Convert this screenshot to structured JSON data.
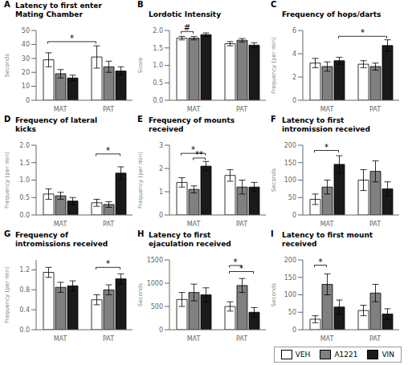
{
  "chart_data": [
    {
      "type": "bar",
      "label": "A",
      "title": "Latency to first enter\nMating Chamber",
      "ylabel": "Seconds",
      "categories": [
        "MAT",
        "PAT"
      ],
      "series": [
        {
          "name": "VEH",
          "color": "#ffffff",
          "values": [
            29,
            31
          ],
          "errors": [
            5,
            8
          ]
        },
        {
          "name": "A1221",
          "color": "#808080",
          "values": [
            19,
            24
          ],
          "errors": [
            3,
            4
          ]
        },
        {
          "name": "VIN",
          "color": "#1a1a1a",
          "values": [
            16,
            21
          ],
          "errors": [
            2,
            3
          ]
        }
      ],
      "ylim": [
        0,
        50
      ],
      "yticks": [
        0,
        10,
        20,
        30,
        40,
        50
      ],
      "annotations": [
        {
          "text": "*",
          "from": {
            "category": "MAT",
            "series": "VEH"
          },
          "to": {
            "category": "PAT",
            "series": "VEH"
          },
          "y": 42
        }
      ]
    },
    {
      "type": "bar",
      "label": "B",
      "title": "Lordotic Intensity",
      "ylabel": "Score",
      "categories": [
        "MAT",
        "PAT"
      ],
      "series": [
        {
          "name": "VEH",
          "color": "#ffffff",
          "values": [
            1.78,
            1.62
          ],
          "errors": [
            0.05,
            0.06
          ]
        },
        {
          "name": "A1221",
          "color": "#808080",
          "values": [
            1.78,
            1.72
          ],
          "errors": [
            0.05,
            0.05
          ]
        },
        {
          "name": "VIN",
          "color": "#1a1a1a",
          "values": [
            1.88,
            1.58
          ],
          "errors": [
            0.05,
            0.07
          ]
        }
      ],
      "ylim": [
        0.0,
        2.0
      ],
      "yticks": [
        {
          "value": 0,
          "label": "0.0"
        },
        0.5,
        {
          "value": 1,
          "label": "1.0"
        },
        1.5,
        {
          "value": 2,
          "label": "2.0"
        }
      ],
      "annotations": [
        {
          "text": "#",
          "from": {
            "category": "MAT",
            "series": "VEH"
          },
          "to": {
            "category": "MAT",
            "series": "A1221"
          },
          "y": 1.97
        }
      ]
    },
    {
      "type": "bar",
      "label": "C",
      "title": "Frequency of hops/darts",
      "ylabel": "Frequency (per min)",
      "categories": [
        "MAT",
        "PAT"
      ],
      "series": [
        {
          "name": "VEH",
          "color": "#ffffff",
          "values": [
            3.2,
            3.1
          ],
          "errors": [
            0.4,
            0.3
          ]
        },
        {
          "name": "A1221",
          "color": "#808080",
          "values": [
            2.9,
            2.9
          ],
          "errors": [
            0.4,
            0.3
          ]
        },
        {
          "name": "VIN",
          "color": "#1a1a1a",
          "values": [
            3.4,
            4.7
          ],
          "errors": [
            0.3,
            0.5
          ]
        }
      ],
      "ylim": [
        0,
        6
      ],
      "yticks": [
        0,
        2,
        4,
        6
      ],
      "annotations": [
        {
          "text": "*",
          "from": {
            "category": "MAT",
            "series": "VIN"
          },
          "to": {
            "category": "PAT",
            "series": "VIN"
          },
          "y": 5.5
        }
      ]
    },
    {
      "type": "bar",
      "label": "D",
      "title": "Frequency of lateral\nkicks",
      "ylabel": "Frequency (per min)",
      "categories": [
        "MAT",
        "PAT"
      ],
      "series": [
        {
          "name": "VEH",
          "color": "#ffffff",
          "values": [
            0.6,
            0.35
          ],
          "errors": [
            0.15,
            0.1
          ]
        },
        {
          "name": "A1221",
          "color": "#808080",
          "values": [
            0.55,
            0.3
          ],
          "errors": [
            0.1,
            0.08
          ]
        },
        {
          "name": "VIN",
          "color": "#1a1a1a",
          "values": [
            0.4,
            1.2
          ],
          "errors": [
            0.1,
            0.18
          ]
        }
      ],
      "ylim": [
        0,
        2
      ],
      "yticks": [
        {
          "value": 0,
          "label": "0.0"
        },
        0.5,
        {
          "value": 1,
          "label": "1.0"
        },
        1.5,
        {
          "value": 2,
          "label": "2.0"
        }
      ],
      "annotations": [
        {
          "text": "*",
          "from": {
            "category": "PAT",
            "series": "VEH"
          },
          "to": {
            "category": "PAT",
            "series": "VIN"
          },
          "y": 1.75
        }
      ]
    },
    {
      "type": "bar",
      "label": "E",
      "title": "Frequency of mounts\nreceived",
      "ylabel": "Frequency (per min)",
      "categories": [
        "MAT",
        "PAT"
      ],
      "series": [
        {
          "name": "VEH",
          "color": "#ffffff",
          "values": [
            1.4,
            1.7
          ],
          "errors": [
            0.2,
            0.25
          ]
        },
        {
          "name": "A1221",
          "color": "#808080",
          "values": [
            1.1,
            1.2
          ],
          "errors": [
            0.15,
            0.3
          ]
        },
        {
          "name": "VIN",
          "color": "#1a1a1a",
          "values": [
            2.1,
            1.2
          ],
          "errors": [
            0.2,
            0.2
          ]
        }
      ],
      "ylim": [
        0,
        3
      ],
      "yticks": [
        0,
        1,
        2,
        3
      ],
      "annotations": [
        {
          "text": "*",
          "from": {
            "category": "MAT",
            "series": "VEH"
          },
          "to": {
            "category": "MAT",
            "series": "VIN"
          },
          "y": 2.65
        },
        {
          "text": "**",
          "from": {
            "category": "MAT",
            "series": "A1221"
          },
          "to": {
            "category": "MAT",
            "series": "VIN"
          },
          "y": 2.45
        }
      ]
    },
    {
      "type": "bar",
      "label": "F",
      "title": "Latency to first\nintromission received",
      "ylabel": "Seconds",
      "categories": [
        "MAT",
        "PAT"
      ],
      "series": [
        {
          "name": "VEH",
          "color": "#ffffff",
          "values": [
            45,
            100
          ],
          "errors": [
            15,
            30
          ]
        },
        {
          "name": "A1221",
          "color": "#808080",
          "values": [
            80,
            125
          ],
          "errors": [
            20,
            30
          ]
        },
        {
          "name": "VIN",
          "color": "#1a1a1a",
          "values": [
            145,
            75
          ],
          "errors": [
            25,
            20
          ]
        }
      ],
      "ylim": [
        0,
        200
      ],
      "yticks": [
        0,
        50,
        100,
        150,
        200
      ],
      "annotations": [
        {
          "text": "*",
          "from": {
            "category": "MAT",
            "series": "VEH"
          },
          "to": {
            "category": "MAT",
            "series": "VIN"
          },
          "y": 185
        }
      ]
    },
    {
      "type": "bar",
      "label": "G",
      "title": "Frequency of\nintromissions received",
      "ylabel": "Frequency (per min)",
      "categories": [
        "MAT",
        "PAT"
      ],
      "series": [
        {
          "name": "VEH",
          "color": "#ffffff",
          "values": [
            1.15,
            0.6
          ],
          "errors": [
            0.1,
            0.1
          ]
        },
        {
          "name": "A1221",
          "color": "#808080",
          "values": [
            0.85,
            0.8
          ],
          "errors": [
            0.1,
            0.1
          ]
        },
        {
          "name": "VIN",
          "color": "#1a1a1a",
          "values": [
            0.88,
            1.02
          ],
          "errors": [
            0.1,
            0.1
          ]
        }
      ],
      "ylim": [
        0,
        1.4
      ],
      "yticks": [
        {
          "value": 0,
          "label": "0.0"
        },
        0.4,
        0.8,
        1.2
      ],
      "annotations": [
        {
          "text": "*",
          "from": {
            "category": "PAT",
            "series": "VEH"
          },
          "to": {
            "category": "PAT",
            "series": "VIN"
          },
          "y": 1.25
        }
      ]
    },
    {
      "type": "bar",
      "label": "H",
      "title": "Latency to first\nejaculation received",
      "ylabel": "Seconds",
      "categories": [
        "MAT",
        "PAT"
      ],
      "series": [
        {
          "name": "VEH",
          "color": "#ffffff",
          "values": [
            650,
            500
          ],
          "errors": [
            150,
            100
          ]
        },
        {
          "name": "A1221",
          "color": "#808080",
          "values": [
            800,
            950
          ],
          "errors": [
            180,
            150
          ]
        },
        {
          "name": "VIN",
          "color": "#1a1a1a",
          "values": [
            750,
            375
          ],
          "errors": [
            150,
            100
          ]
        }
      ],
      "ylim": [
        0,
        1500
      ],
      "yticks": [
        0,
        500,
        1000,
        1500
      ],
      "annotations": [
        {
          "text": "*",
          "from": {
            "category": "PAT",
            "series": "VEH"
          },
          "to": {
            "category": "PAT",
            "series": "A1221"
          },
          "y": 1380
        },
        {
          "text": "*",
          "from": {
            "category": "PAT",
            "series": "VEH"
          },
          "to": {
            "category": "PAT",
            "series": "VIN"
          },
          "y": 1250
        }
      ]
    },
    {
      "type": "bar",
      "label": "I",
      "title": "Latency to first mount\nreceived",
      "ylabel": "Seconds",
      "categories": [
        "MAT",
        "PAT"
      ],
      "series": [
        {
          "name": "VEH",
          "color": "#ffffff",
          "values": [
            30,
            55
          ],
          "errors": [
            10,
            15
          ]
        },
        {
          "name": "A1221",
          "color": "#808080",
          "values": [
            130,
            105
          ],
          "errors": [
            30,
            25
          ]
        },
        {
          "name": "VIN",
          "color": "#1a1a1a",
          "values": [
            65,
            45
          ],
          "errors": [
            20,
            15
          ]
        }
      ],
      "ylim": [
        0,
        200
      ],
      "yticks": [
        0,
        50,
        100,
        150,
        200
      ],
      "annotations": [
        {
          "text": "*",
          "from": {
            "category": "MAT",
            "series": "VEH"
          },
          "to": {
            "category": "MAT",
            "series": "A1221"
          },
          "y": 185
        }
      ],
      "legend": "lower right"
    }
  ]
}
